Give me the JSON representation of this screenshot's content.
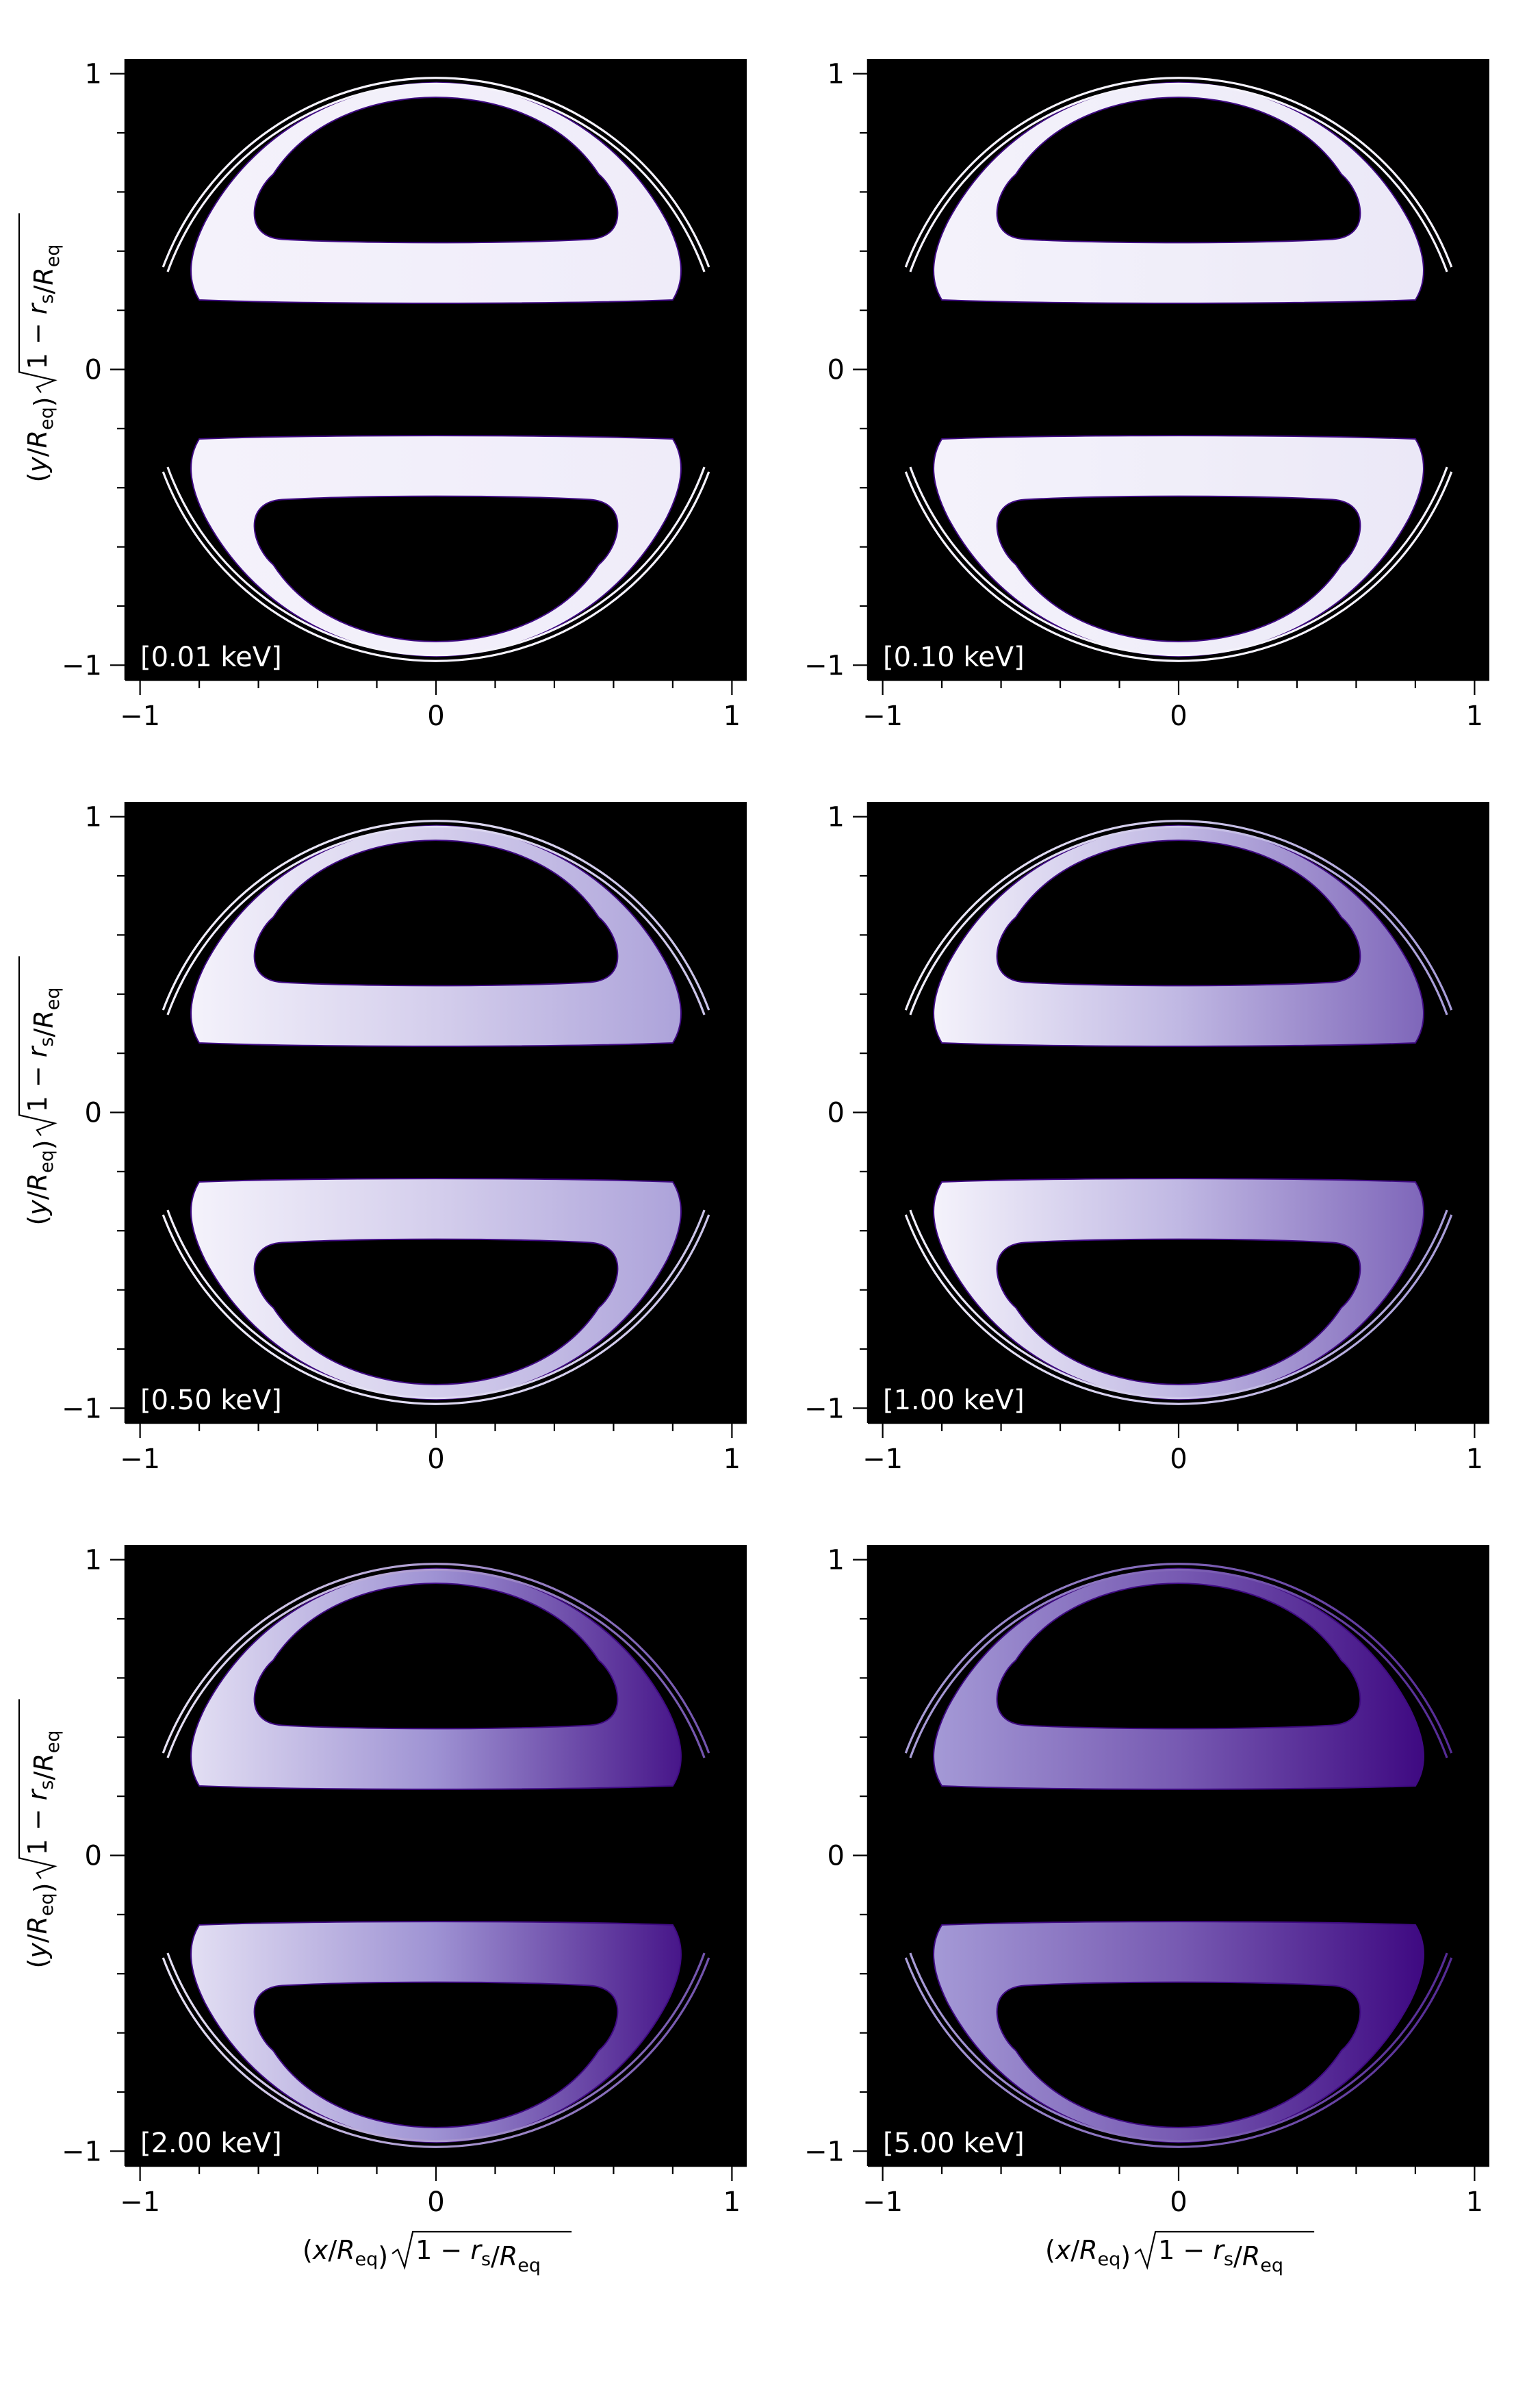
{
  "figure": {
    "ylabel": "(y/R_eq)√(1 − r_s/R_eq)",
    "xlabel": "(x/R_eq)√(1 − r_s/R_eq)"
  },
  "colors": {
    "background": "#000000",
    "bright": "#f4f2fb",
    "mid": "#9b8fd2",
    "dark": "#3f0a82",
    "label": "#ffffff"
  },
  "chart_data": [
    {
      "type": "heatmap",
      "energy_label": "[0.01 keV]",
      "row": 0,
      "col": 0,
      "brightness": {
        "left": 1.0,
        "right": 0.97
      },
      "limb_brightness": {
        "left": 1.0,
        "right": 1.0
      },
      "xlim": [
        -1.05,
        1.05
      ],
      "ylim": [
        -1.05,
        1.05
      ],
      "xticks": [
        -1,
        0,
        1
      ],
      "xtick_labels": [
        "−1",
        "0",
        "1"
      ],
      "yticks": [
        -1,
        0,
        1
      ],
      "ytick_labels": [
        "−1",
        "0",
        "1"
      ],
      "grid": false
    },
    {
      "type": "heatmap",
      "energy_label": "[0.10 keV]",
      "row": 0,
      "col": 1,
      "brightness": {
        "left": 1.0,
        "right": 0.95
      },
      "limb_brightness": {
        "left": 1.0,
        "right": 1.0
      },
      "xlim": [
        -1.05,
        1.05
      ],
      "ylim": [
        -1.05,
        1.05
      ],
      "xticks": [
        -1,
        0,
        1
      ],
      "xtick_labels": [
        "−1",
        "0",
        "1"
      ],
      "yticks": [
        -1,
        0,
        1
      ],
      "ytick_labels": [
        "−1",
        "0",
        "1"
      ],
      "grid": false
    },
    {
      "type": "heatmap",
      "energy_label": "[0.50 keV]",
      "row": 1,
      "col": 0,
      "brightness": {
        "left": 1.0,
        "right": 0.6
      },
      "limb_brightness": {
        "left": 1.0,
        "right": 0.75
      },
      "xlim": [
        -1.05,
        1.05
      ],
      "ylim": [
        -1.05,
        1.05
      ],
      "xticks": [
        -1,
        0,
        1
      ],
      "xtick_labels": [
        "−1",
        "0",
        "1"
      ],
      "yticks": [
        -1,
        0,
        1
      ],
      "ytick_labels": [
        "−1",
        "0",
        "1"
      ],
      "grid": false
    },
    {
      "type": "heatmap",
      "energy_label": "[1.00 keV]",
      "row": 1,
      "col": 1,
      "brightness": {
        "left": 1.0,
        "right": 0.35
      },
      "limb_brightness": {
        "left": 1.0,
        "right": 0.55
      },
      "xlim": [
        -1.05,
        1.05
      ],
      "ylim": [
        -1.05,
        1.05
      ],
      "xticks": [
        -1,
        0,
        1
      ],
      "xtick_labels": [
        "−1",
        "0",
        "1"
      ],
      "yticks": [
        -1,
        0,
        1
      ],
      "ytick_labels": [
        "−1",
        "0",
        "1"
      ],
      "grid": false
    },
    {
      "type": "heatmap",
      "energy_label": "[2.00 keV]",
      "row": 2,
      "col": 0,
      "brightness": {
        "left": 0.9,
        "right": 0.05
      },
      "limb_brightness": {
        "left": 0.95,
        "right": 0.25
      },
      "xlim": [
        -1.05,
        1.05
      ],
      "ylim": [
        -1.05,
        1.05
      ],
      "xticks": [
        -1,
        0,
        1
      ],
      "xtick_labels": [
        "−1",
        "0",
        "1"
      ],
      "yticks": [
        -1,
        0,
        1
      ],
      "ytick_labels": [
        "−1",
        "0",
        "1"
      ],
      "grid": false
    },
    {
      "type": "heatmap",
      "energy_label": "[5.00 keV]",
      "row": 2,
      "col": 1,
      "brightness": {
        "left": 0.55,
        "right": 0.0
      },
      "limb_brightness": {
        "left": 0.6,
        "right": 0.1
      },
      "xlim": [
        -1.05,
        1.05
      ],
      "ylim": [
        -1.05,
        1.05
      ],
      "xticks": [
        -1,
        0,
        1
      ],
      "xtick_labels": [
        "−1",
        "0",
        "1"
      ],
      "yticks": [
        -1,
        0,
        1
      ],
      "ytick_labels": [
        "−1",
        "0",
        "1"
      ],
      "grid": false
    }
  ]
}
